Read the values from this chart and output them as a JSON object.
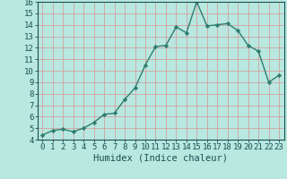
{
  "x": [
    0,
    1,
    2,
    3,
    4,
    5,
    6,
    7,
    8,
    9,
    10,
    11,
    12,
    13,
    14,
    15,
    16,
    17,
    18,
    19,
    20,
    21,
    22,
    23
  ],
  "y": [
    4.4,
    4.8,
    4.9,
    4.7,
    5.0,
    5.5,
    6.2,
    6.3,
    7.5,
    8.5,
    10.5,
    12.1,
    12.2,
    13.8,
    13.3,
    16.0,
    13.9,
    14.0,
    14.1,
    13.5,
    12.2,
    11.7,
    9.0,
    9.6
  ],
  "line_color": "#2e7d6e",
  "marker": "D",
  "marker_size": 2.2,
  "bg_color": "#b8e8e0",
  "grid_color": "#d4a0a0",
  "xlabel": "Humidex (Indice chaleur)",
  "ylim": [
    4,
    16
  ],
  "xlim_min": -0.5,
  "xlim_max": 23.5,
  "yticks": [
    4,
    5,
    6,
    7,
    8,
    9,
    10,
    11,
    12,
    13,
    14,
    15,
    16
  ],
  "xticks": [
    0,
    1,
    2,
    3,
    4,
    5,
    6,
    7,
    8,
    9,
    10,
    11,
    12,
    13,
    14,
    15,
    16,
    17,
    18,
    19,
    20,
    21,
    22,
    23
  ],
  "tick_fontsize": 6.5,
  "xlabel_fontsize": 7.5,
  "linewidth": 1.0
}
